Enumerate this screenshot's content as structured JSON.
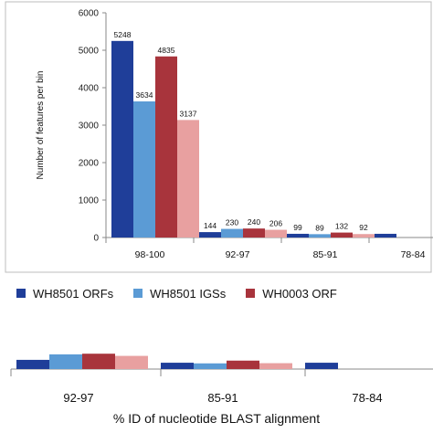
{
  "chart_data": {
    "type": "bar",
    "xlabel": "% ID of  nucleotide BLAST alignment",
    "ylabel": "Number of features per bin",
    "ylim": [
      0,
      6000
    ],
    "yticks": [
      0,
      1000,
      2000,
      3000,
      4000,
      5000,
      6000
    ],
    "categories": [
      "98-100",
      "92-97",
      "85-91",
      "78-84"
    ],
    "series": [
      {
        "name": "WH8501 ORFs",
        "color": "#1f3e99",
        "values": [
          5248,
          144,
          99,
          null
        ]
      },
      {
        "name": "WH8501 IGSs",
        "color": "#5b9bd5",
        "values": [
          3634,
          230,
          89,
          null
        ]
      },
      {
        "name": "WH0003 ORF",
        "color": "#a8343c",
        "values": [
          4835,
          240,
          132,
          null
        ]
      },
      {
        "name": "",
        "color": "#e8a0a0",
        "values": [
          3137,
          206,
          92,
          null
        ]
      }
    ],
    "data_labels": true,
    "legend_position": "bottom",
    "lower_panel": {
      "categories": [
        "92-97",
        "85-91",
        "78-84"
      ]
    }
  }
}
